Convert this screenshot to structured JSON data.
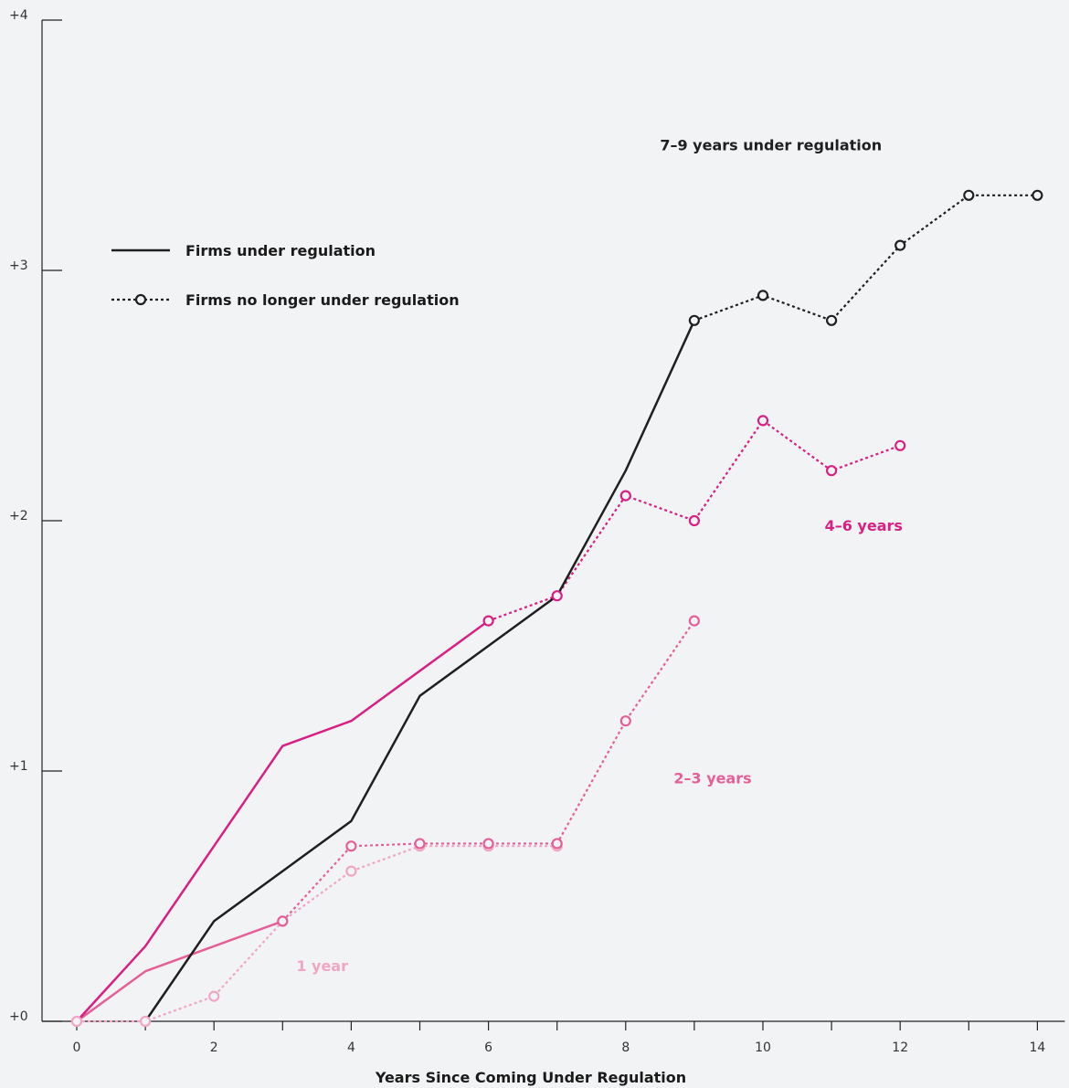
{
  "chart_data": {
    "type": "line",
    "xlabel": "Years Since Coming Under Regulation",
    "ylabel": "",
    "xlim": [
      -0.5,
      14.4
    ],
    "ylim": [
      0,
      4
    ],
    "x_ticks": [
      0,
      1,
      2,
      3,
      4,
      5,
      6,
      7,
      8,
      9,
      10,
      11,
      12,
      13,
      14
    ],
    "x_tick_labels": [
      "0",
      "",
      "2",
      "",
      "4",
      "",
      "6",
      "",
      "8",
      "",
      "10",
      "",
      "12",
      "",
      "14"
    ],
    "y_ticks": [
      0,
      1,
      2,
      3,
      4
    ],
    "y_tick_labels": [
      "+0",
      "+1",
      "+2",
      "+3",
      "+4"
    ],
    "grid": false,
    "legend": {
      "position": "top-left",
      "entries": [
        {
          "label": "Firms under regulation",
          "style": "solid"
        },
        {
          "label": "Firms no longer under regulation",
          "style": "dotted-circle"
        }
      ]
    },
    "annotations": [
      {
        "text": "7–9 years under regulation",
        "color": "#1f1f1f",
        "x": 8.5,
        "y": 3.48
      },
      {
        "text": "4–6 years",
        "color": "#d81f83",
        "x": 10.9,
        "y": 1.96
      },
      {
        "text": "2–3 years",
        "color": "#e55f97",
        "x": 8.7,
        "y": 0.95
      },
      {
        "text": "1 year",
        "color": "#f0a6c3",
        "x": 3.2,
        "y": 0.2
      }
    ],
    "series": [
      {
        "group": "7–9 years under regulation",
        "status": "under regulation",
        "style": "solid",
        "color": "#1f1f1f",
        "x": [
          1,
          2,
          3,
          4,
          5,
          6,
          7,
          8,
          9
        ],
        "y": [
          0,
          0.4,
          0.6,
          0.8,
          1.3,
          1.5,
          1.7,
          2.2,
          2.8
        ]
      },
      {
        "group": "7–9 years under regulation",
        "status": "no longer under regulation",
        "style": "dotted",
        "color": "#1f1f1f",
        "x": [
          9,
          10,
          11,
          12,
          13,
          14
        ],
        "y": [
          2.8,
          2.9,
          2.8,
          3.1,
          3.3,
          3.3
        ]
      },
      {
        "group": "4–6 years",
        "status": "under regulation",
        "style": "solid",
        "color": "#d81f83",
        "x": [
          0,
          1,
          2,
          3,
          4,
          5,
          6
        ],
        "y": [
          0,
          0.3,
          0.7,
          1.1,
          1.2,
          1.4,
          1.6
        ]
      },
      {
        "group": "4–6 years",
        "status": "no longer under regulation",
        "style": "dotted",
        "color": "#d81f83",
        "x": [
          6,
          7,
          8,
          9,
          10,
          11,
          12
        ],
        "y": [
          1.6,
          1.7,
          2.1,
          2.0,
          2.4,
          2.2,
          2.3
        ]
      },
      {
        "group": "2–3 years",
        "status": "under regulation",
        "style": "solid",
        "color": "#e55f97",
        "x": [
          0,
          1,
          2,
          3
        ],
        "y": [
          0,
          0.2,
          0.3,
          0.4
        ]
      },
      {
        "group": "2–3 years",
        "status": "no longer under regulation",
        "style": "dotted",
        "color": "#e55f97",
        "x": [
          3,
          4,
          5,
          6,
          7,
          8,
          9
        ],
        "y": [
          0.4,
          0.7,
          0.71,
          0.71,
          0.71,
          1.2,
          1.6
        ]
      },
      {
        "group": "1 year",
        "status": "no longer under regulation",
        "style": "dotted",
        "color": "#f0a6c3",
        "x": [
          0,
          1,
          2,
          3,
          4,
          5,
          6,
          7
        ],
        "y": [
          0,
          0,
          0.1,
          0.4,
          0.6,
          0.7,
          0.7,
          0.7
        ]
      }
    ]
  }
}
